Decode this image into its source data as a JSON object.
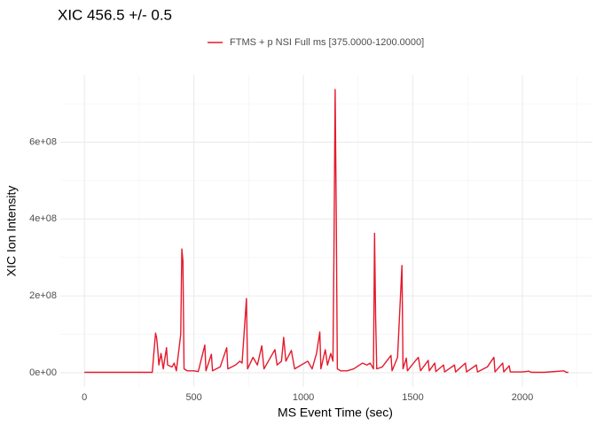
{
  "chart_data": {
    "type": "line",
    "title": "XIC 456.5 +/- 0.5",
    "xlabel": "MS Event Time (sec)",
    "ylabel": "XIC Ion Intensity",
    "legend_position": "top",
    "grid": true,
    "xlim": [
      -110,
      2320
    ],
    "ylim": [
      -37000000.0,
      774000000.0
    ],
    "xticks": [
      0,
      500,
      1000,
      1500,
      2000
    ],
    "x_minor_breaks": [
      250,
      750,
      1250,
      1750,
      2250
    ],
    "yticks": [
      {
        "value": 0,
        "label": "0e+00"
      },
      {
        "value": 200000000.0,
        "label": "2e+08"
      },
      {
        "value": 400000000.0,
        "label": "4e+08"
      },
      {
        "value": 600000000.0,
        "label": "6e+08"
      }
    ],
    "y_minor_breaks": [
      100000000.0,
      300000000.0,
      500000000.0,
      700000000.0
    ],
    "x": [
      0,
      100,
      200,
      310,
      320,
      325,
      330,
      335,
      340,
      350,
      360,
      375,
      380,
      400,
      410,
      420,
      440,
      445,
      450,
      455,
      470,
      500,
      520,
      550,
      555,
      580,
      585,
      620,
      650,
      655,
      690,
      710,
      720,
      740,
      745,
      770,
      790,
      810,
      820,
      850,
      870,
      880,
      900,
      910,
      920,
      945,
      960,
      990,
      1020,
      1040,
      1060,
      1075,
      1080,
      1100,
      1110,
      1125,
      1135,
      1140,
      1145,
      1150,
      1155,
      1170,
      1200,
      1230,
      1270,
      1290,
      1305,
      1320,
      1325,
      1330,
      1335,
      1360,
      1400,
      1405,
      1430,
      1450,
      1455,
      1470,
      1475,
      1510,
      1525,
      1535,
      1570,
      1575,
      1600,
      1605,
      1640,
      1645,
      1690,
      1695,
      1740,
      1745,
      1790,
      1795,
      1840,
      1870,
      1875,
      1910,
      1915,
      1940,
      1945,
      2000,
      2030,
      2040,
      2100,
      2190,
      2200,
      2210
    ],
    "series": [
      {
        "name": "FTMS + p NSI Full ms [375.0000-1200.0000]",
        "color": "#e41a2c",
        "values": [
          1000000.0,
          1000000.0,
          1000000.0,
          1000000.0,
          70000000.0,
          103000000.0,
          90000000.0,
          60000000.0,
          20000000.0,
          50000000.0,
          10000000.0,
          65000000.0,
          20000000.0,
          15000000.0,
          25000000.0,
          5000000.0,
          100000000.0,
          322000000.0,
          290000000.0,
          10000000.0,
          5000000.0,
          5000000.0,
          3000000.0,
          72000000.0,
          5000000.0,
          48000000.0,
          5000000.0,
          15000000.0,
          65000000.0,
          10000000.0,
          20000000.0,
          30000000.0,
          25000000.0,
          193000000.0,
          10000000.0,
          40000000.0,
          20000000.0,
          70000000.0,
          10000000.0,
          40000000.0,
          60000000.0,
          20000000.0,
          30000000.0,
          92000000.0,
          30000000.0,
          58000000.0,
          10000000.0,
          20000000.0,
          30000000.0,
          10000000.0,
          50000000.0,
          106000000.0,
          10000000.0,
          60000000.0,
          20000000.0,
          50000000.0,
          30000000.0,
          340000000.0,
          737000000.0,
          418000000.0,
          10000000.0,
          5000000.0,
          5000000.0,
          10000000.0,
          25000000.0,
          20000000.0,
          25000000.0,
          10000000.0,
          363000000.0,
          140000000.0,
          10000000.0,
          15000000.0,
          45000000.0,
          5000000.0,
          40000000.0,
          279000000.0,
          10000000.0,
          38000000.0,
          5000000.0,
          30000000.0,
          40000000.0,
          5000000.0,
          32000000.0,
          5000000.0,
          25000000.0,
          3000000.0,
          20000000.0,
          2000000.0,
          20000000.0,
          2000000.0,
          25000000.0,
          2000000.0,
          20000000.0,
          2000000.0,
          15000000.0,
          40000000.0,
          2000000.0,
          25000000.0,
          2000000.0,
          18000000.0,
          2000000.0,
          2000000.0,
          4000000.0,
          1000000.0,
          1000000.0,
          5000000.0,
          1000000.0,
          1000000.0
        ]
      }
    ]
  }
}
